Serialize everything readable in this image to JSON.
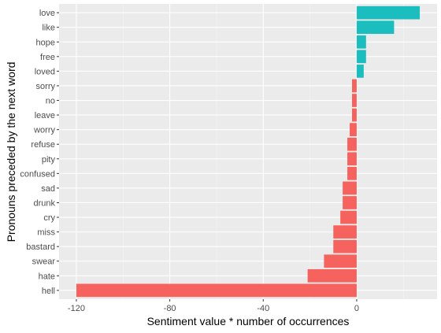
{
  "chart_data": {
    "type": "bar",
    "orientation": "horizontal",
    "title": "",
    "xlabel": "Sentiment value * number of occurrences",
    "ylabel": "Pronouns preceded by the next word",
    "xlim": [
      -120,
      27
    ],
    "x_ticks": [
      -120,
      -80,
      -40,
      0
    ],
    "x_tick_labels": [
      "-120",
      "-80",
      "-40",
      "0"
    ],
    "grid": true,
    "legend": "none",
    "colors": {
      "positive": "#1cbdbe",
      "negative": "#f6625e",
      "panel": "#ebebeb",
      "grid_major": "#ffffff",
      "grid_minor": "#f5f5f5"
    },
    "categories": [
      "love",
      "like",
      "hope",
      "free",
      "loved",
      "sorry",
      "no",
      "leave",
      "worry",
      "refuse",
      "pity",
      "confused",
      "sad",
      "drunk",
      "cry",
      "miss",
      "bastard",
      "swear",
      "hate",
      "hell"
    ],
    "values": [
      27,
      16,
      4,
      4,
      3,
      -2,
      -2,
      -2,
      -3,
      -4,
      -4,
      -4,
      -6,
      -6,
      -7,
      -10,
      -10,
      -14,
      -21,
      -120
    ]
  }
}
